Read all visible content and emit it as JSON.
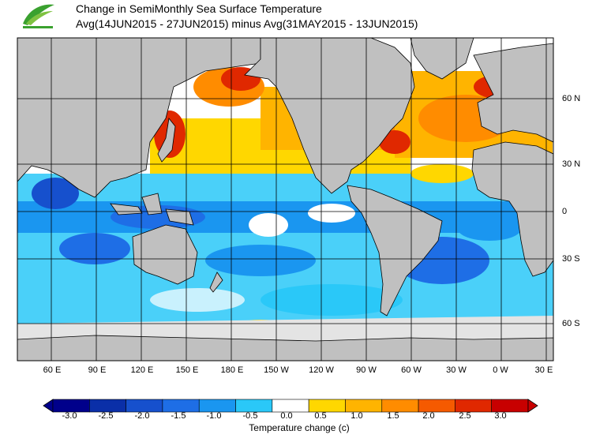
{
  "title": {
    "line1": "Change in SemiMonthly Sea Surface Temperature",
    "line2": "Avg(14JUN2015 - 27JUN2015) minus Avg(31MAY2015 - 13JUN2015)"
  },
  "map": {
    "longitude_labels": [
      "60 E",
      "90 E",
      "120 E",
      "150 E",
      "180 E",
      "150 W",
      "120 W",
      "90 W",
      "60 W",
      "30 W",
      "0 W",
      "30 E"
    ],
    "latitude_labels": [
      "60 N",
      "30 N",
      "0",
      "30 S",
      "60 S"
    ]
  },
  "legend": {
    "title": "Temperature change  (c)",
    "tick_labels": [
      "-3.0",
      "-2.5",
      "-2.0",
      "-1.5",
      "-1.0",
      "-0.5",
      "0.0",
      "0.5",
      "1.0",
      "1.5",
      "2.0",
      "2.5",
      "3.0"
    ],
    "colors": [
      "#00008b",
      "#0a2fa8",
      "#1650cd",
      "#1e6ee6",
      "#1a96f0",
      "#2ac8f8",
      "#ffffff",
      "#ffd700",
      "#ffb400",
      "#ff8c00",
      "#f55a00",
      "#e02800",
      "#c80000"
    ]
  },
  "colors": {
    "land": "#c0c0c0",
    "ice": "#e4e4e4",
    "grid": "#000000"
  }
}
